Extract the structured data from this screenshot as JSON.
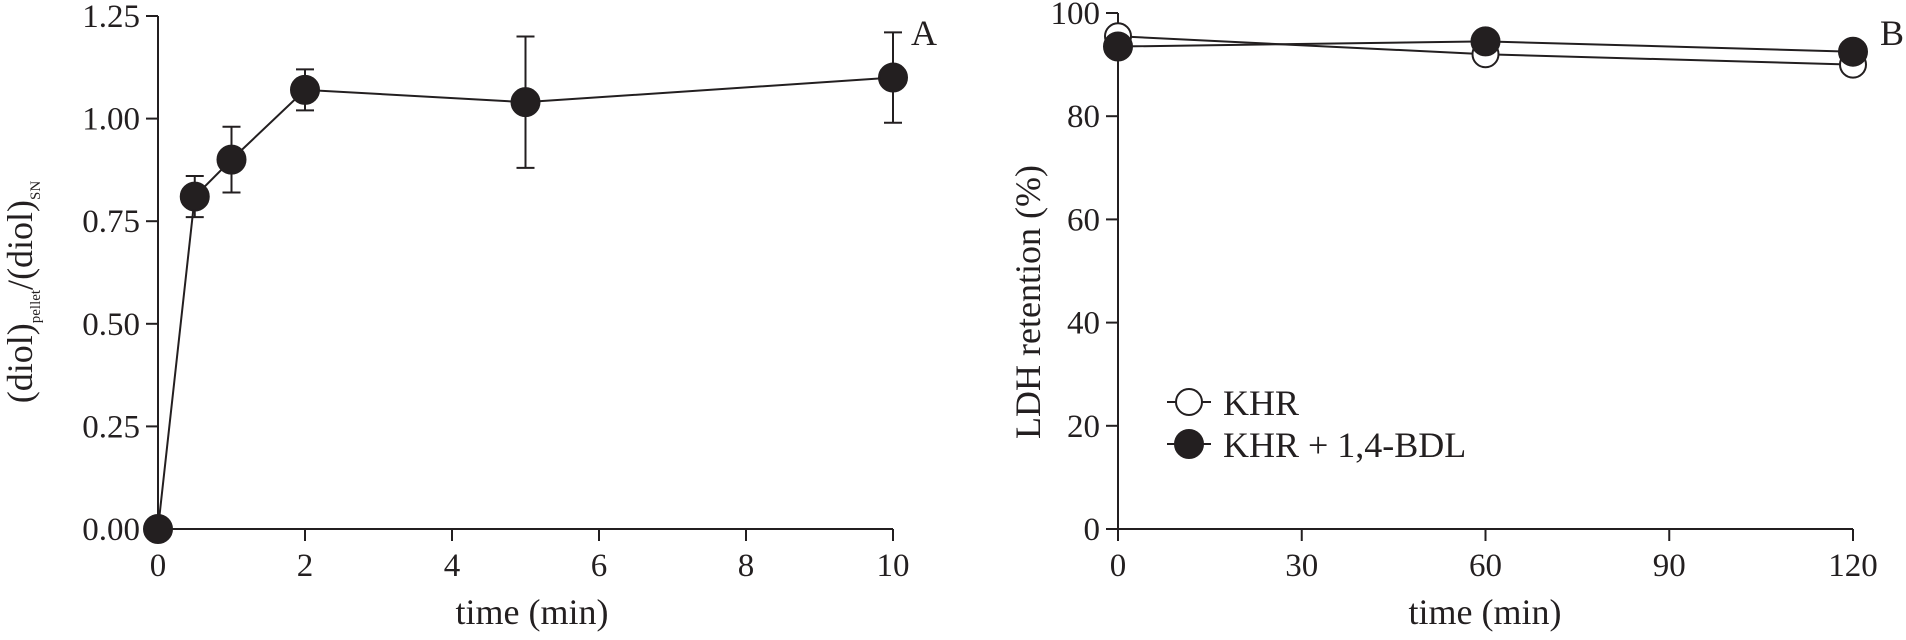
{
  "chart_data": [
    {
      "panel": "A",
      "type": "line",
      "xlabel": "time (min)",
      "ylabel": {
        "main": "(diol)",
        "sub1": "pellet",
        "mid": "/(diol)",
        "sub2": "SN"
      },
      "xlim": [
        0,
        10
      ],
      "ylim": [
        0,
        1.25
      ],
      "xticks": [
        0,
        2,
        4,
        6,
        8,
        10
      ],
      "yticks": [
        "0.00",
        "0.25",
        "0.50",
        "0.75",
        "1.00",
        "1.25"
      ],
      "series": [
        {
          "marker": "filled-circle",
          "x": [
            0,
            0.5,
            1,
            2,
            5,
            10
          ],
          "y": [
            0.0,
            0.81,
            0.9,
            1.07,
            1.04,
            1.1
          ],
          "err": [
            0,
            0.05,
            0.08,
            0.05,
            0.16,
            0.11
          ]
        }
      ]
    },
    {
      "panel": "B",
      "type": "line",
      "xlabel": "time (min)",
      "ylabel": "LDH retention (%)",
      "xlim": [
        0,
        120
      ],
      "ylim": [
        0,
        100
      ],
      "xticks": [
        0,
        30,
        60,
        90,
        120
      ],
      "yticks": [
        0,
        20,
        40,
        60,
        80,
        100
      ],
      "legend": {
        "position": "bottom-left"
      },
      "series": [
        {
          "name": "KHR",
          "marker": "open-circle",
          "x": [
            0,
            60,
            120
          ],
          "y": [
            95.5,
            92.0,
            90.0
          ],
          "err": [
            0,
            0,
            1.5
          ]
        },
        {
          "name": "KHR + 1,4-BDL",
          "marker": "filled-circle",
          "x": [
            0,
            60,
            120
          ],
          "y": [
            93.5,
            94.5,
            92.5
          ],
          "err": [
            0,
            0,
            0
          ]
        }
      ]
    }
  ]
}
